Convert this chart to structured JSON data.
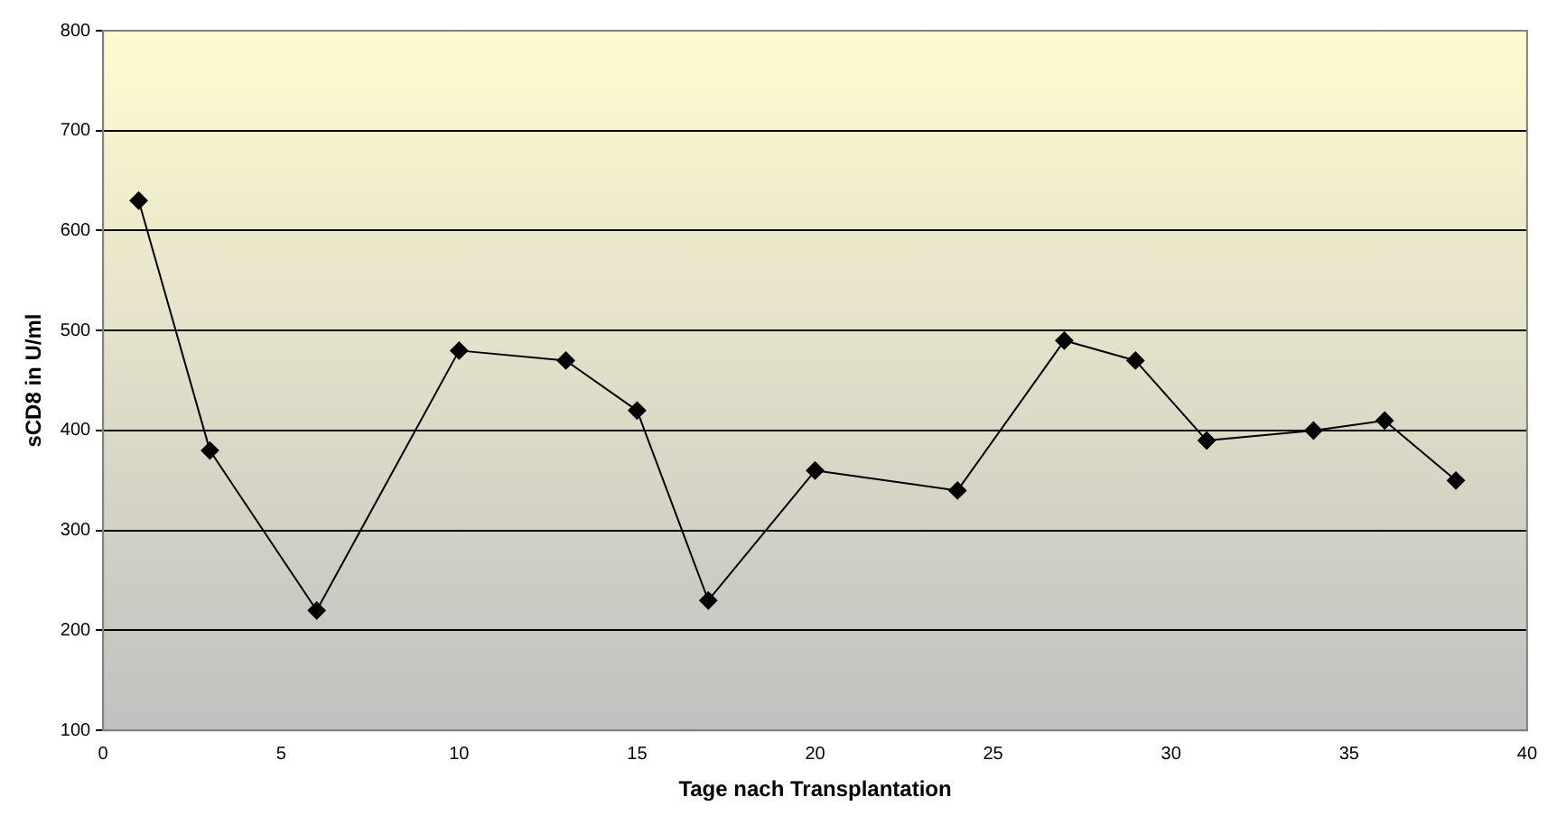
{
  "chart_data": {
    "type": "line",
    "xlabel": "Tage nach Transplantation",
    "ylabel": "sCD8 in U/ml",
    "x": [
      1,
      3,
      6,
      10,
      13,
      15,
      17,
      20,
      24,
      27,
      29,
      31,
      34,
      36,
      38
    ],
    "series": [
      {
        "color": "#000000",
        "values": [
          630,
          380,
          220,
          480,
          470,
          420,
          230,
          360,
          340,
          490,
          470,
          390,
          400,
          410,
          350
        ]
      }
    ],
    "xlim": [
      0,
      40
    ],
    "xticks": [
      0,
      5,
      10,
      15,
      20,
      25,
      30,
      35,
      40
    ],
    "ylim": [
      100,
      800
    ],
    "yticks": [
      100,
      200,
      300,
      400,
      500,
      600,
      700,
      800
    ],
    "grid": "y",
    "legend": false,
    "marker": "diamond",
    "line_style": "solid"
  }
}
